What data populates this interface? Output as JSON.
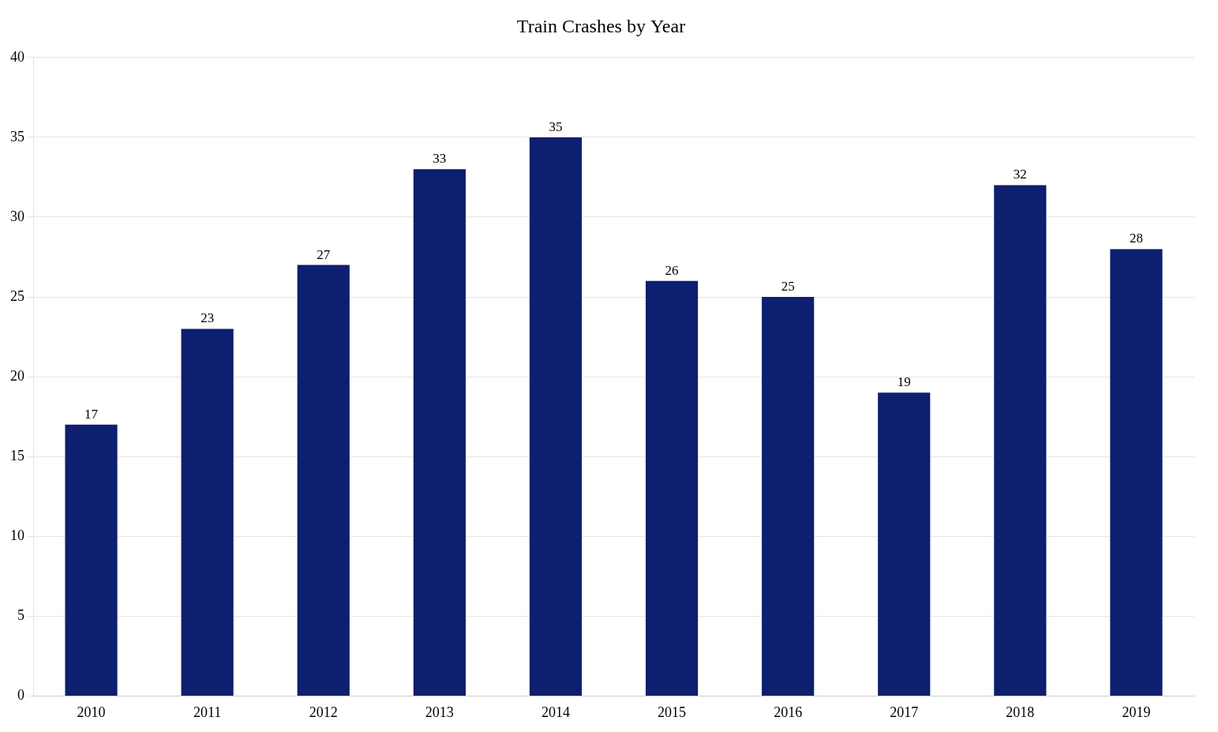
{
  "chart_data": {
    "type": "bar",
    "title": "Train Crashes by Year",
    "categories": [
      "2010",
      "2011",
      "2012",
      "2013",
      "2014",
      "2015",
      "2016",
      "2017",
      "2018",
      "2019"
    ],
    "values": [
      17,
      23,
      27,
      33,
      35,
      26,
      25,
      19,
      32,
      28
    ],
    "color": "#0d1f6e",
    "ylim": [
      0,
      40
    ],
    "yticks": [
      0,
      5,
      10,
      15,
      20,
      25,
      30,
      35,
      40
    ],
    "grid": true,
    "data_labels": true
  }
}
